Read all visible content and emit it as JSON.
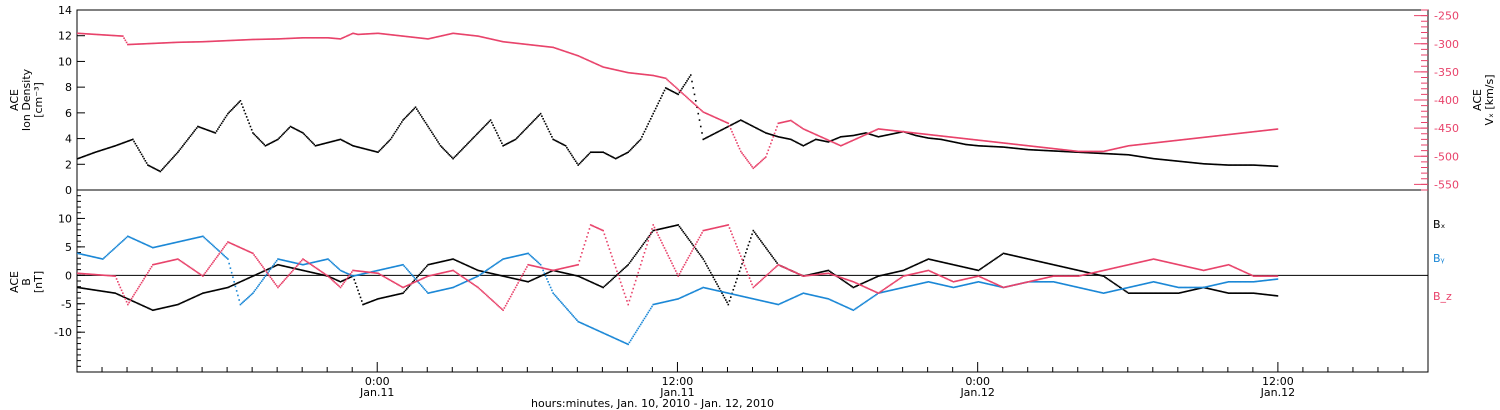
{
  "colors": {
    "black": "#000000",
    "red": "#e8426a",
    "blue": "#1a87d6"
  },
  "chart_data": [
    {
      "type": "scatter",
      "panel": "top",
      "ylabel": [
        "ACE",
        "Ion Density",
        "[cm⁻³]"
      ],
      "ylim": [
        0,
        14
      ],
      "yticks": [
        "0",
        "2",
        "4",
        "6",
        "8",
        "10",
        "12",
        "14"
      ],
      "y2label": [
        "ACE",
        "Vₓ [km/s]"
      ],
      "y2lim": [
        -560,
        -240
      ],
      "y2ticks": [
        "-250",
        "-300",
        "-350",
        "-400",
        "-450",
        "-500",
        "-550"
      ],
      "series": [
        {
          "color": "black",
          "axis": "left",
          "x": [
            -12,
            -11.3,
            -10.5,
            -9.8,
            -9.2,
            -8.7,
            -8,
            -7.2,
            -6.5,
            -6,
            -5.5,
            -5,
            -4.5,
            -4,
            -3.5,
            -3,
            -2.5,
            -1.5,
            -1,
            0,
            0.5,
            1,
            1.5,
            2,
            2.5,
            3,
            3.5,
            4,
            4.5,
            5,
            5.5,
            6,
            6.5,
            7,
            7.5,
            8,
            8.5,
            9,
            9.5,
            10,
            10.5,
            11,
            11.5,
            12,
            12.5,
            13,
            13.5,
            14,
            14.5,
            15,
            15.5,
            16,
            16.5,
            17,
            17.5,
            18,
            18.5,
            19,
            19.5,
            20,
            20.5,
            21,
            21.5,
            22,
            22.5,
            23,
            23.5,
            24,
            25,
            26,
            27,
            28,
            29,
            30,
            31,
            32,
            33,
            34,
            35,
            36
          ],
          "y": [
            2.5,
            3,
            3.5,
            4,
            2,
            1.5,
            3,
            5,
            4.5,
            6,
            7,
            4.5,
            3.5,
            4,
            5,
            4.5,
            3.5,
            4,
            3.5,
            3,
            4,
            5.5,
            6.5,
            5,
            3.5,
            2.5,
            3.5,
            4.5,
            5.5,
            3.5,
            4,
            5,
            6,
            4,
            3.5,
            2,
            3,
            3,
            2.5,
            3,
            4,
            6,
            8,
            7.5,
            9,
            4,
            4.5,
            5,
            5.5,
            5,
            4.5,
            4.2,
            4,
            3.5,
            4,
            3.8,
            4.2,
            4.3,
            4.5,
            4.2,
            4.4,
            4.6,
            4.3,
            4.1,
            4,
            3.8,
            3.6,
            3.5,
            3.4,
            3.2,
            3.1,
            3,
            2.9,
            2.8,
            2.5,
            2.3,
            2.1,
            2,
            2,
            1.9
          ]
        },
        {
          "color": "red",
          "axis": "right",
          "x": [
            -12,
            -10.2,
            -10,
            -9,
            -8,
            -7,
            -6,
            -5,
            -4,
            -3,
            -2,
            -1.5,
            -1,
            0,
            1,
            2,
            3,
            4,
            -0.8,
            5,
            6,
            7,
            8,
            9,
            10,
            11,
            11.5,
            12,
            12.5,
            13,
            14,
            14.5,
            15,
            15.5,
            16,
            16.5,
            17,
            17.5,
            18,
            18.5,
            19,
            19.5,
            20,
            21,
            22,
            23,
            24,
            25,
            26,
            27,
            28,
            29,
            30,
            31,
            32,
            33,
            34,
            35,
            36
          ],
          "y": [
            -280,
            -285,
            -300,
            -298,
            -296,
            -295,
            -293,
            -291,
            -290,
            -288,
            -288,
            -290,
            -280,
            -280,
            -285,
            -290,
            -280,
            -285,
            -282,
            -295,
            -300,
            -305,
            -320,
            -340,
            -350,
            -355,
            -360,
            -380,
            -400,
            -420,
            -440,
            -490,
            -520,
            -500,
            -440,
            -435,
            -450,
            -460,
            -470,
            -480,
            -470,
            -460,
            -450,
            -455,
            -460,
            -465,
            -470,
            -475,
            -480,
            -485,
            -490,
            -490,
            -480,
            -475,
            -470,
            -465,
            -460,
            -455,
            -450
          ]
        }
      ]
    },
    {
      "type": "scatter",
      "panel": "bottom",
      "ylabel": [
        "ACE",
        "B",
        "[nT]"
      ],
      "ylim": [
        -17,
        15
      ],
      "yticks": [
        "-10",
        "-5",
        "0",
        "5",
        "10"
      ],
      "legend": [
        {
          "label": "Bₓ",
          "color": "black"
        },
        {
          "label": "Bᵧ",
          "color": "blue"
        },
        {
          "label": "B_z",
          "color": "red"
        }
      ],
      "series": [
        {
          "color": "black",
          "x": [
            -12,
            -10.5,
            -9,
            -8,
            -7,
            -6,
            -5,
            -4,
            -3,
            -2,
            -1.5,
            -1,
            -0.6,
            0,
            1,
            2,
            3,
            4,
            5,
            6,
            7,
            8,
            9,
            10,
            11,
            12,
            13,
            14,
            15,
            16,
            17,
            18,
            19,
            20,
            21,
            22,
            23,
            24,
            25,
            26,
            27,
            28,
            29,
            30,
            31,
            32,
            33,
            34,
            35,
            36
          ],
          "y": [
            -2,
            -3,
            -6,
            -5,
            -3,
            -2,
            0,
            2,
            1,
            0,
            -1,
            0,
            -5,
            -4,
            -3,
            2,
            3,
            1,
            0,
            -1,
            1,
            0,
            -2,
            2,
            8,
            9,
            3,
            -5,
            8,
            2,
            0,
            1,
            -2,
            0,
            1,
            3,
            2,
            1,
            4,
            3,
            2,
            1,
            0,
            -3,
            -3,
            -3,
            -2,
            -3,
            -3,
            -3.5
          ]
        },
        {
          "color": "blue",
          "x": [
            -12,
            -11,
            -10,
            -9.5,
            -9,
            -8,
            -7,
            -6,
            -5.5,
            -5,
            -4,
            -3,
            -2,
            -1.5,
            -1,
            0,
            1,
            2,
            3,
            4,
            5,
            6,
            6.5,
            7,
            8,
            8.5,
            9,
            10,
            11,
            12,
            13,
            14,
            15,
            16,
            17,
            18,
            19,
            20,
            21,
            22,
            23,
            24,
            25,
            26,
            27,
            28,
            29,
            30,
            31,
            32,
            33,
            34,
            35,
            36
          ],
          "y": [
            4,
            3,
            7,
            6,
            5,
            6,
            7,
            3,
            -5,
            -3,
            3,
            2,
            3,
            1,
            0,
            1,
            2,
            -3,
            -2,
            0,
            3,
            4,
            2,
            -3,
            -8,
            -9,
            -10,
            -12,
            -5,
            -4,
            -2,
            -3,
            -4,
            -5,
            -3,
            -4,
            -6,
            -3,
            -2,
            -1,
            -2,
            -1,
            -2,
            -1,
            -1,
            -2,
            -3,
            -2,
            -1,
            -2,
            -2,
            -1,
            -1,
            -0.5
          ]
        },
        {
          "color": "red",
          "x": [
            -12,
            -10.5,
            -10,
            -9,
            -8,
            -7,
            -6,
            -5,
            -4,
            -3,
            -2,
            -1.5,
            -1,
            0,
            1,
            2,
            3,
            4,
            5,
            6,
            7,
            8,
            8.5,
            9,
            10,
            11,
            12,
            13,
            14,
            15,
            16,
            17,
            18,
            19,
            20,
            21,
            22,
            23,
            24,
            25,
            26,
            27,
            28,
            29,
            30,
            31,
            32,
            33,
            34,
            35,
            36
          ],
          "y": [
            0.5,
            0,
            -5,
            2,
            3,
            0,
            6,
            4,
            -2,
            3,
            0,
            -2,
            1,
            0.5,
            -2,
            0,
            1,
            -2,
            -6,
            2,
            1,
            2,
            9,
            8,
            -5,
            9,
            0,
            8,
            9,
            -2,
            2,
            0,
            0.5,
            -1,
            -3,
            0,
            1,
            -1,
            0,
            -2,
            -1,
            0,
            0,
            1,
            2,
            3,
            2,
            1,
            2,
            0,
            0
          ]
        }
      ]
    }
  ],
  "xaxis": {
    "range_hours": [
      -12,
      42
    ],
    "ticks": [
      {
        "hours": 0,
        "time": "0:00",
        "date": "Jan.11"
      },
      {
        "hours": 12,
        "time": "12:00",
        "date": "Jan.11"
      },
      {
        "hours": 24,
        "time": "0:00",
        "date": "Jan.12"
      },
      {
        "hours": 36,
        "time": "12:00",
        "date": "Jan.12"
      }
    ],
    "title": "hours:minutes, Jan. 10, 2010 - Jan. 12, 2010"
  }
}
